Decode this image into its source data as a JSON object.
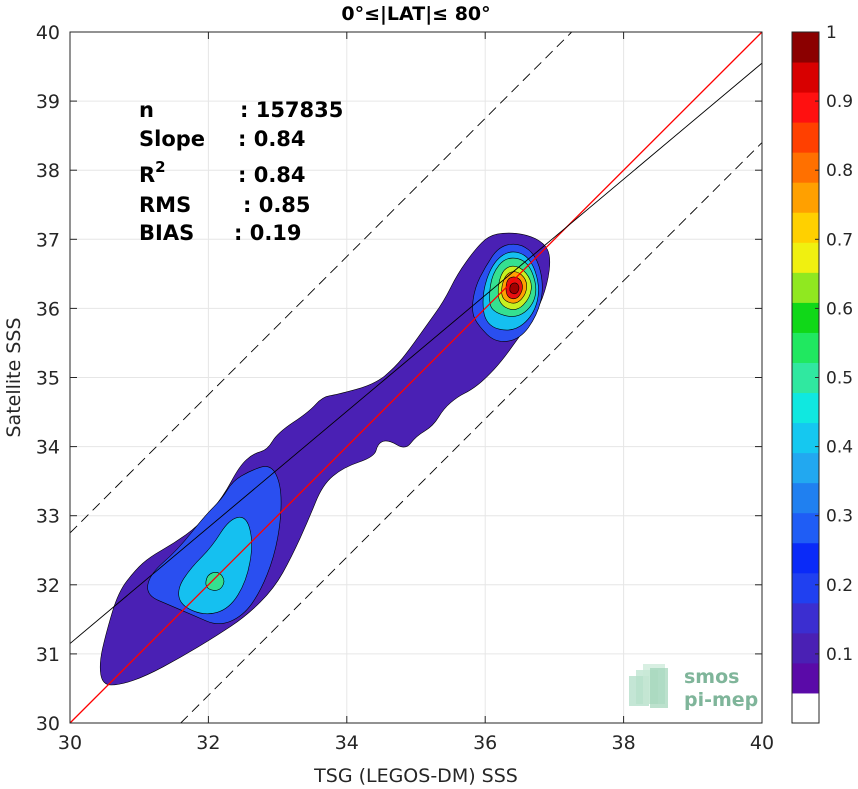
{
  "chart_data": {
    "type": "heatmap",
    "title": "0°≤|LAT|≤ 80°",
    "xlabel": "TSG (LEGOS-DM) SSS",
    "ylabel": "Satellite SSS",
    "xlim": [
      30,
      40
    ],
    "ylim": [
      30,
      40
    ],
    "xticks": [
      30,
      32,
      34,
      36,
      38,
      40
    ],
    "yticks": [
      30,
      31,
      32,
      33,
      34,
      35,
      36,
      37,
      38,
      39,
      40
    ],
    "grid": true,
    "stats": [
      {
        "label": "n",
        "value": ": 157835"
      },
      {
        "label": "Slope",
        "value": ": 0.84"
      },
      {
        "label": "R",
        "sup": "2",
        "value": ": 0.84"
      },
      {
        "label": "RMS",
        "value": ": 0.85"
      },
      {
        "label": "BIAS",
        "value": ": 0.19"
      }
    ],
    "lines": [
      {
        "name": "one-to-one",
        "slope": 1.0,
        "intercept": 0,
        "color": "#ff0000",
        "style": "solid"
      },
      {
        "name": "regression",
        "slope": 0.84,
        "intercept": 5.95,
        "color": "#000000",
        "style": "solid"
      },
      {
        "name": "upper-bound",
        "slope": 1.0,
        "intercept": 2.75,
        "color": "#000000",
        "style": "dashed"
      },
      {
        "name": "lower-bound",
        "slope": 1.0,
        "intercept": -1.6,
        "color": "#000000",
        "style": "dashed"
      }
    ],
    "density_regions": [
      {
        "level": 0.05,
        "color": "#4a20b4",
        "points": [
          [
            30.47,
            30.55
          ],
          [
            30.72,
            30.55
          ],
          [
            31.1,
            30.68
          ],
          [
            31.6,
            30.95
          ],
          [
            32.1,
            31.25
          ],
          [
            32.55,
            31.55
          ],
          [
            32.95,
            31.95
          ],
          [
            33.2,
            32.4
          ],
          [
            33.45,
            32.95
          ],
          [
            33.65,
            33.45
          ],
          [
            33.95,
            33.7
          ],
          [
            34.4,
            33.85
          ],
          [
            34.45,
            34.05
          ],
          [
            34.6,
            34.1
          ],
          [
            34.85,
            33.95
          ],
          [
            35.0,
            34.15
          ],
          [
            35.25,
            34.3
          ],
          [
            35.4,
            34.55
          ],
          [
            35.6,
            34.72
          ],
          [
            35.8,
            34.82
          ],
          [
            36.0,
            34.98
          ],
          [
            36.25,
            35.25
          ],
          [
            36.5,
            35.6
          ],
          [
            36.75,
            35.95
          ],
          [
            36.9,
            36.35
          ],
          [
            36.95,
            36.75
          ],
          [
            36.85,
            36.95
          ],
          [
            36.6,
            37.07
          ],
          [
            36.3,
            37.1
          ],
          [
            36.05,
            37.05
          ],
          [
            35.85,
            36.85
          ],
          [
            35.6,
            36.5
          ],
          [
            35.4,
            36.1
          ],
          [
            35.15,
            35.75
          ],
          [
            34.9,
            35.4
          ],
          [
            34.7,
            35.15
          ],
          [
            34.4,
            34.9
          ],
          [
            33.85,
            34.75
          ],
          [
            33.65,
            34.72
          ],
          [
            33.45,
            34.5
          ],
          [
            33.0,
            34.2
          ],
          [
            32.85,
            33.95
          ],
          [
            32.65,
            33.9
          ],
          [
            32.45,
            33.72
          ],
          [
            32.2,
            33.25
          ],
          [
            31.85,
            32.85
          ],
          [
            31.5,
            32.6
          ],
          [
            31.15,
            32.4
          ],
          [
            30.95,
            32.22
          ],
          [
            30.7,
            31.9
          ],
          [
            30.52,
            31.3
          ],
          [
            30.42,
            30.85
          ]
        ]
      },
      {
        "level": 0.15,
        "color": "#2a4ff0",
        "points": [
          [
            31.1,
            31.85
          ],
          [
            31.45,
            31.7
          ],
          [
            31.8,
            31.55
          ],
          [
            32.15,
            31.4
          ],
          [
            32.5,
            31.55
          ],
          [
            32.75,
            31.9
          ],
          [
            32.95,
            32.4
          ],
          [
            33.05,
            32.95
          ],
          [
            33.05,
            33.45
          ],
          [
            32.9,
            33.75
          ],
          [
            32.6,
            33.65
          ],
          [
            32.35,
            33.5
          ],
          [
            32.2,
            33.25
          ],
          [
            31.95,
            33.0
          ],
          [
            31.55,
            32.5
          ],
          [
            31.15,
            32.15
          ]
        ]
      },
      {
        "level": 0.15,
        "color": "#2a4ff0",
        "points": [
          [
            35.9,
            35.75
          ],
          [
            36.15,
            35.5
          ],
          [
            36.5,
            35.55
          ],
          [
            36.75,
            35.9
          ],
          [
            36.85,
            36.3
          ],
          [
            36.75,
            36.75
          ],
          [
            36.5,
            36.95
          ],
          [
            36.2,
            36.9
          ],
          [
            36.0,
            36.6
          ],
          [
            35.85,
            36.3
          ],
          [
            35.8,
            35.95
          ]
        ]
      },
      {
        "level": 0.3,
        "color": "#15c0f0",
        "points": [
          [
            31.6,
            31.7
          ],
          [
            31.95,
            31.55
          ],
          [
            32.3,
            31.65
          ],
          [
            32.55,
            32.05
          ],
          [
            32.65,
            32.6
          ],
          [
            32.55,
            33.0
          ],
          [
            32.3,
            32.95
          ],
          [
            32.05,
            32.55
          ],
          [
            31.75,
            32.25
          ],
          [
            31.55,
            31.95
          ]
        ]
      },
      {
        "level": 0.3,
        "color": "#15c0f0",
        "points": [
          [
            36.0,
            35.75
          ],
          [
            36.4,
            35.65
          ],
          [
            36.7,
            35.9
          ],
          [
            36.8,
            36.3
          ],
          [
            36.65,
            36.75
          ],
          [
            36.35,
            36.85
          ],
          [
            36.1,
            36.65
          ],
          [
            35.95,
            36.2
          ]
        ]
      },
      {
        "level": 0.45,
        "color": "#35e090",
        "points": [
          [
            36.1,
            35.95
          ],
          [
            36.45,
            35.85
          ],
          [
            36.7,
            36.05
          ],
          [
            36.75,
            36.35
          ],
          [
            36.6,
            36.7
          ],
          [
            36.3,
            36.75
          ],
          [
            36.1,
            36.5
          ],
          [
            36.05,
            36.15
          ]
        ]
      },
      {
        "level": 0.45,
        "color": "#35e090",
        "points": [
          [
            31.95,
            31.95
          ],
          [
            32.15,
            31.9
          ],
          [
            32.25,
            32.05
          ],
          [
            32.15,
            32.2
          ],
          [
            31.98,
            32.15
          ]
        ]
      },
      {
        "level": 0.6,
        "color": "#c8f020",
        "points": [
          [
            36.2,
            36.05
          ],
          [
            36.45,
            35.95
          ],
          [
            36.65,
            36.15
          ],
          [
            36.68,
            36.4
          ],
          [
            36.5,
            36.62
          ],
          [
            36.28,
            36.6
          ],
          [
            36.18,
            36.35
          ]
        ]
      },
      {
        "level": 0.7,
        "color": "#ffa000",
        "points": [
          [
            36.25,
            36.12
          ],
          [
            36.45,
            36.05
          ],
          [
            36.6,
            36.22
          ],
          [
            36.6,
            36.42
          ],
          [
            36.45,
            36.55
          ],
          [
            36.3,
            36.5
          ],
          [
            36.23,
            36.3
          ]
        ]
      },
      {
        "level": 0.85,
        "color": "#e81010",
        "points": [
          [
            36.3,
            36.17
          ],
          [
            36.45,
            36.12
          ],
          [
            36.55,
            36.27
          ],
          [
            36.52,
            36.42
          ],
          [
            36.4,
            36.47
          ],
          [
            36.3,
            36.4
          ]
        ]
      },
      {
        "level": 1.0,
        "color": "#a00000",
        "points": [
          [
            36.35,
            36.23
          ],
          [
            36.45,
            36.2
          ],
          [
            36.5,
            36.3
          ],
          [
            36.45,
            36.38
          ],
          [
            36.36,
            36.35
          ]
        ]
      }
    ],
    "colorbar": {
      "range": [
        0,
        1
      ],
      "ticks": [
        "0.1",
        "0.2",
        "0.3",
        "0.4",
        "0.5",
        "0.6",
        "0.7",
        "0.8",
        "0.9",
        "1"
      ],
      "colors": [
        "#ffffff",
        "#5a0aa8",
        "#4a20b4",
        "#3b2ed0",
        "#2040f0",
        "#0a2af8",
        "#1f5df5",
        "#2080f0",
        "#22a8f0",
        "#15c8f0",
        "#10e8e0",
        "#30e8a0",
        "#20e860",
        "#10d818",
        "#90e820",
        "#f0f010",
        "#ffd000",
        "#ffa000",
        "#ff7000",
        "#ff4000",
        "#ff1010",
        "#d80000",
        "#8b0000"
      ]
    },
    "watermark": {
      "line1": "smos",
      "line2": "pi-mep"
    }
  }
}
